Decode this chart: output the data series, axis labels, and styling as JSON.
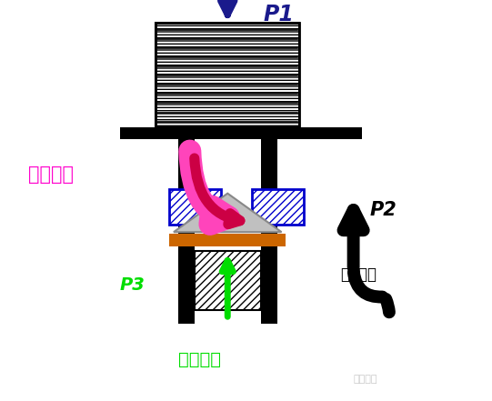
{
  "bg_color": "#ffffff",
  "p1_label": "P1",
  "p1_color": "#1a1a8c",
  "p2_label": "P2",
  "p3_label": "P3",
  "p3_color": "#00dd00",
  "p3_text": "弹簧压力",
  "hot_gas_text": "热气入口",
  "hot_gas_color": "#ff00cc",
  "p2_text": "回气压力",
  "watermark": "制冷百科"
}
